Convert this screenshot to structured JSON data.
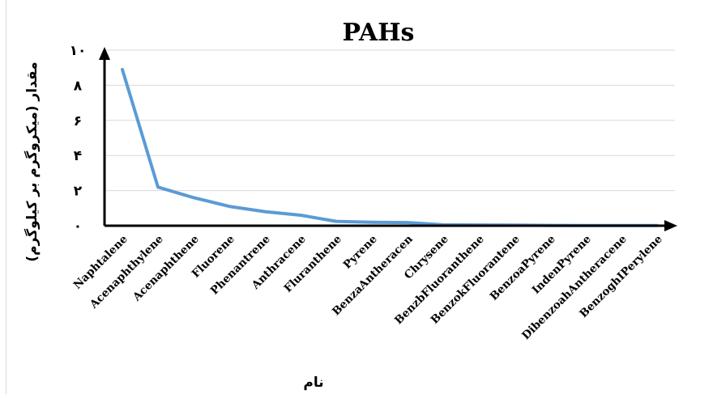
{
  "chart_data": {
    "type": "line",
    "title": "PAHs",
    "xlabel": "نام",
    "ylabel": "مقدار (میکروگرم بر کیلوگرم)",
    "ylim": [
      0,
      10
    ],
    "yticks": [
      {
        "value": 0,
        "label": "۰"
      },
      {
        "value": 2,
        "label": "۲"
      },
      {
        "value": 4,
        "label": "۴"
      },
      {
        "value": 6,
        "label": "۶"
      },
      {
        "value": 8,
        "label": "۸"
      },
      {
        "value": 10,
        "label": "۱۰"
      }
    ],
    "grid": true,
    "legend": "none",
    "categories": [
      "Naphtalene",
      "Acenaphthylene",
      "Acenaphthene",
      "Fluorene",
      "Phenantrene",
      "Anthracene",
      "Fluranthene",
      "Pyrene",
      "BenzaAntheracen",
      "Chrysene",
      "BenzbFluoranthene",
      "BenzokFluorantene",
      "BenzoaPyrene",
      "IndenPyrene",
      "DibenzoahAntheracene",
      "BenzoghIPerylene"
    ],
    "series": [
      {
        "values": [
          8.9,
          2.2,
          1.6,
          1.1,
          0.8,
          0.6,
          0.25,
          0.2,
          0.18,
          0.05,
          0.04,
          0.03,
          0.02,
          0.01,
          0.01,
          0.01
        ],
        "color": "#5b9bd5"
      }
    ]
  }
}
